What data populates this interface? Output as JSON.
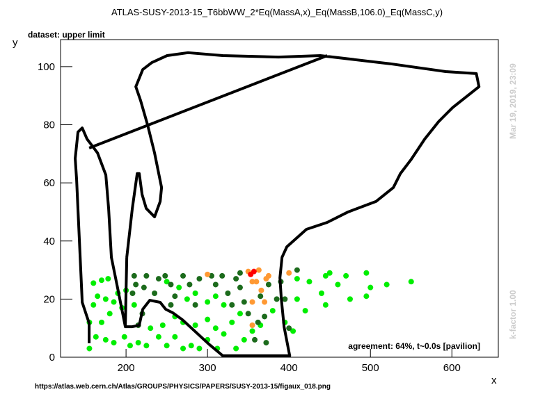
{
  "chart_data": {
    "type": "scatter",
    "title": "ATLAS-SUSY-2013-15_T6bbWW_2*Eq(MassA,x)_Eq(MassB,106.0)_Eq(MassC,y)",
    "subtitle": "dataset: upper limit",
    "x_label": "x",
    "y_label": "y",
    "xlim": [
      119.6,
      657
    ],
    "ylim": [
      0,
      109.3
    ],
    "xticks": [
      200,
      300,
      400,
      500,
      600
    ],
    "yticks": [
      0,
      20,
      40,
      60,
      80,
      100
    ],
    "annotation": "agreement: 64%, t~0.0s [pavilion]",
    "timestamp": "Mar 19, 2019, 23:09",
    "kfactor": "k-factor 1.00",
    "footer": "https://atlas.web.cern.ch/Atlas/GROUPS/PHYSICS/PAPERS/SUSY-2013-15/figaux_018.png",
    "series": [
      {
        "color": "#00ee00",
        "x": [
          160,
          170,
          178,
          165,
          175,
          190,
          200,
          160,
          155,
          170,
          180,
          185,
          195,
          210,
          163,
          175,
          185,
          198,
          205,
          215,
          225,
          240,
          250,
          260,
          270,
          280,
          290,
          300,
          312,
          320,
          335,
          345,
          155,
          230,
          245,
          250,
          265,
          275,
          285,
          300,
          310,
          320,
          330,
          340,
          355,
          365,
          380,
          395,
          405,
          410,
          420,
          425,
          410,
          440,
          445,
          450,
          470,
          475,
          495,
          495,
          500,
          520,
          550,
          445,
          460,
          285,
          300,
          310,
          260,
          270
        ],
        "y": [
          25.5,
          26.5,
          27,
          21,
          20,
          22,
          23,
          18,
          12,
          12,
          15,
          19,
          17,
          18,
          7,
          6,
          5,
          7,
          4,
          5,
          4,
          7,
          4,
          7,
          3,
          4,
          3,
          6,
          3,
          8,
          3,
          6,
          3,
          10,
          11,
          26,
          24,
          20,
          22,
          19,
          21,
          18,
          12,
          15,
          9,
          11,
          16,
          12,
          9,
          20,
          16,
          26,
          27,
          22,
          28,
          29,
          28,
          20,
          29,
          21,
          24,
          25,
          26,
          18,
          25,
          11,
          13,
          10,
          14,
          12
        ]
      },
      {
        "color": "#1c6b1c",
        "x": [
          210,
          212,
          208,
          225,
          222,
          240,
          235,
          248,
          255,
          260,
          270,
          278,
          290,
          285,
          305,
          310,
          318,
          325,
          335,
          330,
          340,
          345,
          350,
          358,
          362,
          365,
          370,
          375,
          372,
          385,
          390,
          395,
          400,
          410,
          220,
          215,
          255,
          340
        ],
        "y": [
          28,
          25,
          22,
          28,
          24,
          27,
          22,
          28,
          25,
          21,
          28,
          25,
          27,
          18,
          28,
          25,
          28,
          22,
          27,
          18,
          24,
          19,
          15,
          6,
          12,
          21,
          14,
          25,
          5,
          20,
          26,
          20,
          10,
          30,
          15,
          11,
          18,
          29
        ]
      },
      {
        "color": "#ff9933",
        "x": [
          300,
          350,
          360,
          363,
          366,
          370,
          355,
          372,
          355,
          355,
          400,
          375
        ],
        "y": [
          28.5,
          29.5,
          26,
          30,
          23,
          19,
          19,
          27,
          11,
          26,
          29,
          28
        ]
      },
      {
        "color": "#ff0000",
        "x": [
          353,
          357
        ],
        "y": [
          28.5,
          29.5
        ]
      }
    ],
    "contour": {
      "color": "#000000",
      "x": [
        154.7,
        154.7,
        146.2,
        139.3,
        137.6,
        141,
        146.2,
        152.1,
        165,
        175.2,
        178.6,
        182,
        190.6,
        199.1,
        null,
        200.9,
        207.7,
        213.7,
        216.2,
        219.7,
        224.8,
        235,
        241.9,
        243.6,
        235,
        226.5,
        217.9,
        212,
        220.5,
        231.6,
        250.4,
        276.1,
        318.8,
        387.2,
        438.5,
        524,
        592.3,
        630,
        633.3,
        600.9,
        583.8,
        566.7,
        549.6,
        536.8,
        528.2,
        506.8,
        472.6,
        447,
        421.4,
        397.4,
        391.5,
        388.9,
        390.6,
        394,
        400.9,
        318.8,
        301.7,
        269.2,
        257.3,
        248.7,
        241.9,
        229.1,
        220.5,
        216.2,
        207.7,
        199.1,
        200.9,
        null,
        154.7,
        447
      ],
      "y": [
        4.8,
        11.7,
        18.9,
        61.2,
        68.4,
        77.5,
        78.9,
        75.1,
        70.3,
        62.7,
        51.2,
        34.4,
        22.5,
        10.5,
        null,
        34.4,
        51.2,
        63.2,
        63.2,
        56,
        51.2,
        48.3,
        53.6,
        58.4,
        70.3,
        79.9,
        88.3,
        93.1,
        99,
        101.4,
        103.8,
        104.8,
        103.8,
        103.3,
        103.8,
        101,
        98.3,
        97.6,
        93.1,
        85.9,
        81.1,
        75.1,
        67.9,
        63.2,
        58.4,
        53.6,
        50,
        46.4,
        44,
        38,
        34.4,
        27.3,
        20.1,
        10.5,
        0.5,
        0.5,
        4.5,
        12.9,
        15.3,
        16.5,
        18.9,
        19.6,
        16.5,
        11,
        10.5,
        10.5,
        34.4,
        null,
        72,
        103.8
      ]
    }
  }
}
